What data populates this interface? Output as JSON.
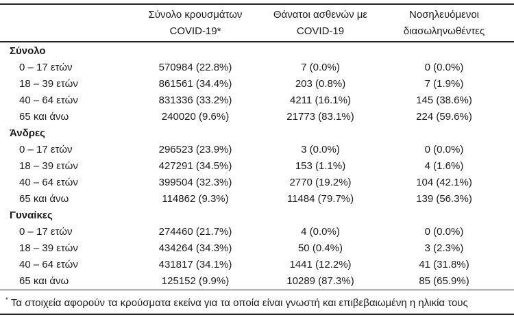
{
  "table": {
    "header": {
      "col_label": "",
      "col_cases": "Σύνολο κρουσμάτων COVID-19*",
      "col_deaths": "Θάνατοι ασθενών με COVID-19",
      "col_intubated": "Νοσηλευόμενοι διασωληνωθέντες"
    },
    "sections": [
      {
        "label": "Σύνολο",
        "rows": [
          {
            "label": "0 – 17 ετών",
            "cases": "570984 (22.8%)",
            "deaths": "7 (0.0%)",
            "intubated": "0 (0.0%)"
          },
          {
            "label": "18 – 39 ετών",
            "cases": "861561 (34.4%)",
            "deaths": "203 (0.8%)",
            "intubated": "7 (1.9%)"
          },
          {
            "label": "40 – 64 ετών",
            "cases": "831336 (33.2%)",
            "deaths": "4211 (16.1%)",
            "intubated": "145 (38.6%)"
          },
          {
            "label": "65 και άνω",
            "cases": "240020 (9.6%)",
            "deaths": "21773 (83.1%)",
            "intubated": "224 (59.6%)"
          }
        ]
      },
      {
        "label": "Άνδρες",
        "rows": [
          {
            "label": "0 – 17 ετών",
            "cases": "296523 (23.9%)",
            "deaths": "3 (0.0%)",
            "intubated": "0 (0.0%)"
          },
          {
            "label": "18 – 39 ετών",
            "cases": "427291 (34.5%)",
            "deaths": "153 (1.1%)",
            "intubated": "4 (1.6%)"
          },
          {
            "label": "40 – 64 ετών",
            "cases": "399504 (32.3%)",
            "deaths": "2770 (19.2%)",
            "intubated": "104 (42.1%)"
          },
          {
            "label": "65 και άνω",
            "cases": "114862 (9.3%)",
            "deaths": "11484 (79.7%)",
            "intubated": "139 (56.3%)"
          }
        ]
      },
      {
        "label": "Γυναίκες",
        "rows": [
          {
            "label": "0 – 17 ετών",
            "cases": "274460 (21.7%)",
            "deaths": "4 (0.0%)",
            "intubated": "0 (0.0%)"
          },
          {
            "label": "18 – 39 ετών",
            "cases": "434264 (34.3%)",
            "deaths": "50 (0.4%)",
            "intubated": "3 (2.3%)"
          },
          {
            "label": "40 – 64 ετών",
            "cases": "431817 (34.1%)",
            "deaths": "1441 (12.2%)",
            "intubated": "41 (31.8%)"
          },
          {
            "label": "65 και άνω",
            "cases": "125152 (9.9%)",
            "deaths": "10289 (87.3%)",
            "intubated": "85 (65.9%)"
          }
        ]
      }
    ],
    "footnote": {
      "marker": "*",
      "text": "Τα στοιχεία αφορούν τα κρούσματα εκείνα για τα οποία είναι γνωστή και επιβεβαιωμένη η ηλικία τους"
    },
    "colors": {
      "text": "#1a1a1a",
      "rule": "#222222",
      "background": "#ffffff"
    }
  }
}
